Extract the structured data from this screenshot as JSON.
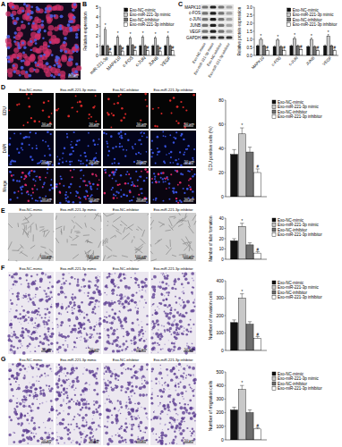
{
  "figure": {
    "panel_labels": [
      "A",
      "B",
      "C",
      "D",
      "E",
      "F",
      "G"
    ],
    "panel_a": {
      "scale_bar": "50 μm"
    },
    "blot": {
      "bands": [
        "MAPK10",
        "c-FOS",
        "c-JUN",
        "JUNB",
        "VEGF",
        "GAPDH"
      ],
      "lanes": [
        "Exo-NC-mimic",
        "Exo-miR-221-3p mimic",
        "Exo-NC-inhibitor",
        "Exo-miR-221-3p inhibitor"
      ]
    },
    "image_columns": [
      "Exo-NC-mimic",
      "Exo-miR-221-3p mimic",
      "Exo-NC-inhibitor",
      "Exo-miR-221-3p inhibitor"
    ],
    "image_rows": [
      {
        "row_labels": [
          "EDU",
          "DAPI",
          "Merge"
        ],
        "scale_bar": "50 μm"
      },
      {
        "scale_bar": "100 μm"
      },
      {
        "scale_bar": "50 μm"
      },
      {
        "scale_bar": "50 μm"
      }
    ]
  },
  "chart_data": [
    {
      "type": "bar",
      "y_label": "Relative expression",
      "categories": [
        "miR-221-3p",
        "MAPK10",
        "c-FOS",
        "c-JUN",
        "JUNB",
        "VEGF"
      ],
      "ylim": [
        0,
        5
      ],
      "yticks": [
        0,
        1,
        2,
        3,
        4,
        5
      ],
      "grid": false,
      "legend": "top-right",
      "series": [
        {
          "name": "Exo-NC-mimic",
          "color": "#111111",
          "values": [
            1.0,
            1.0,
            1.0,
            1.0,
            1.0,
            1.0
          ],
          "errors": [
            0.1,
            0.1,
            0.1,
            0.1,
            0.1,
            0.1
          ],
          "significance": [
            null,
            null,
            null,
            null,
            null,
            null
          ]
        },
        {
          "name": "Exo-miR-221-3p mimic",
          "color": "#c8c8c8",
          "values": [
            2.7,
            1.9,
            1.8,
            1.9,
            1.8,
            1.9
          ],
          "errors": [
            0.2,
            0.15,
            0.15,
            0.15,
            0.15,
            0.15
          ],
          "significance": [
            "*",
            "*",
            "*",
            "*",
            "*",
            "*"
          ]
        },
        {
          "name": "Exo-NC-inhibitor",
          "color": "#6e6e6e",
          "values": [
            1.0,
            1.0,
            1.05,
            1.0,
            1.0,
            1.0
          ],
          "errors": [
            0.1,
            0.1,
            0.1,
            0.1,
            0.1,
            0.1
          ],
          "significance": [
            null,
            null,
            null,
            null,
            null,
            null
          ]
        },
        {
          "name": "Exo-miR-221-3p inhibitor",
          "color": "#ffffff",
          "values": [
            0.35,
            0.45,
            0.5,
            0.5,
            0.45,
            0.5
          ],
          "errors": [
            0.05,
            0.05,
            0.05,
            0.05,
            0.05,
            0.05
          ],
          "significance": [
            "#",
            "#",
            "#",
            "#",
            "#",
            "#"
          ]
        }
      ]
    },
    {
      "type": "bar",
      "y_label": "Relative protein expression",
      "categories": [
        "MAPK10",
        "c-FOS",
        "c-JUN",
        "JUNB",
        "VEGF"
      ],
      "ylim": [
        0,
        3
      ],
      "yticks": [
        {
          "value": 0,
          "label": "0.0"
        },
        {
          "value": 0.5,
          "label": "0.5"
        },
        {
          "value": 1,
          "label": "1.0"
        },
        {
          "value": 1.5,
          "label": "1.5"
        },
        {
          "value": 2,
          "label": "2.0"
        },
        {
          "value": 2.5,
          "label": "2.5"
        },
        {
          "value": 3,
          "label": "3.0"
        }
      ],
      "grid": false,
      "legend": "top-right",
      "series": [
        {
          "name": "Exo-NC-mimic",
          "color": "#111111",
          "values": [
            0.6,
            0.55,
            0.6,
            0.55,
            0.6
          ],
          "errors": [
            0.05,
            0.05,
            0.05,
            0.05,
            0.05
          ],
          "significance": [
            null,
            null,
            null,
            null,
            null
          ]
        },
        {
          "name": "Exo-miR-221-3p mimic",
          "color": "#c8c8c8",
          "values": [
            1.0,
            0.95,
            1.05,
            1.0,
            1.2
          ],
          "errors": [
            0.08,
            0.08,
            0.08,
            0.08,
            0.1
          ],
          "significance": [
            "*",
            "*",
            "*",
            "*",
            "*"
          ]
        },
        {
          "name": "Exo-NC-inhibitor",
          "color": "#6e6e6e",
          "values": [
            0.6,
            0.55,
            0.6,
            0.55,
            0.6
          ],
          "errors": [
            0.05,
            0.05,
            0.05,
            0.05,
            0.05
          ],
          "significance": [
            null,
            null,
            null,
            null,
            null
          ]
        },
        {
          "name": "Exo-miR-221-3p inhibitor",
          "color": "#ffffff",
          "values": [
            0.3,
            0.3,
            0.35,
            0.3,
            0.3
          ],
          "errors": [
            0.04,
            0.04,
            0.04,
            0.04,
            0.04
          ],
          "significance": [
            "#",
            "#",
            "#",
            "#",
            "#"
          ]
        }
      ]
    },
    {
      "type": "bar",
      "y_label": "EDU positive cells (%)",
      "categories": [
        null
      ],
      "tick_labels": "y",
      "ylim": [
        0,
        80
      ],
      "yticks": [
        0,
        20,
        40,
        60,
        80
      ],
      "grid": false,
      "legend": "right",
      "series": [
        {
          "name": "Exo-NC-mimic",
          "color": "#111111",
          "values": [
            35
          ],
          "errors": [
            4
          ],
          "significance": [
            null
          ]
        },
        {
          "name": "Exo-miR-221-3p mimic",
          "color": "#c8c8c8",
          "values": [
            52
          ],
          "errors": [
            5
          ],
          "significance": [
            "*"
          ]
        },
        {
          "name": "Exo-NC-inhibitor",
          "color": "#6e6e6e",
          "values": [
            37
          ],
          "errors": [
            4
          ],
          "significance": [
            null
          ]
        },
        {
          "name": "Exo-miR-221-3p inhibitor",
          "color": "#ffffff",
          "values": [
            20
          ],
          "errors": [
            3
          ],
          "significance": [
            "#"
          ]
        }
      ]
    },
    {
      "type": "bar",
      "y_label": "Number of tube formation",
      "categories": [
        null
      ],
      "tick_labels": "y",
      "ylim": [
        0,
        40
      ],
      "yticks": [
        0,
        10,
        20,
        30,
        40
      ],
      "grid": false,
      "legend": "right",
      "series": [
        {
          "name": "Exo-NC-mimic",
          "color": "#111111",
          "values": [
            18
          ],
          "errors": [
            2
          ],
          "significance": [
            null
          ]
        },
        {
          "name": "Exo-miR-221-3p mimic",
          "color": "#c8c8c8",
          "values": [
            32
          ],
          "errors": [
            3
          ],
          "significance": [
            "*"
          ]
        },
        {
          "name": "Exo-NC-inhibitor",
          "color": "#6e6e6e",
          "values": [
            14
          ],
          "errors": [
            2
          ],
          "significance": [
            null
          ]
        },
        {
          "name": "Exo-miR-221-3p inhibitor",
          "color": "#ffffff",
          "values": [
            6
          ],
          "errors": [
            1.5
          ],
          "significance": [
            "#"
          ]
        }
      ]
    },
    {
      "type": "bar",
      "y_label": "Number of invasion cells",
      "categories": [
        null
      ],
      "tick_labels": "y",
      "ylim": [
        0,
        400
      ],
      "yticks": [
        0,
        100,
        200,
        300,
        400
      ],
      "grid": false,
      "legend": "right",
      "series": [
        {
          "name": "Exo-NC-mimic",
          "color": "#111111",
          "values": [
            160
          ],
          "errors": [
            15
          ],
          "significance": [
            null
          ]
        },
        {
          "name": "Exo-miR-221-3p mimic",
          "color": "#c8c8c8",
          "values": [
            300
          ],
          "errors": [
            25
          ],
          "significance": [
            "*"
          ]
        },
        {
          "name": "Exo-NC-inhibitor",
          "color": "#6e6e6e",
          "values": [
            150
          ],
          "errors": [
            15
          ],
          "significance": [
            null
          ]
        },
        {
          "name": "Exo-miR-221-3p inhibitor",
          "color": "#ffffff",
          "values": [
            70
          ],
          "errors": [
            10
          ],
          "significance": [
            "#"
          ]
        }
      ]
    },
    {
      "type": "bar",
      "y_label": "Number of migration cells",
      "categories": [
        null
      ],
      "tick_labels": "y",
      "ylim": [
        0,
        500
      ],
      "yticks": [
        0,
        100,
        200,
        300,
        400,
        500
      ],
      "grid": false,
      "legend": "right",
      "series": [
        {
          "name": "Exo-NC-mimic",
          "color": "#111111",
          "values": [
            220
          ],
          "errors": [
            20
          ],
          "significance": [
            null
          ]
        },
        {
          "name": "Exo-miR-221-3p mimic",
          "color": "#c8c8c8",
          "values": [
            370
          ],
          "errors": [
            30
          ],
          "significance": [
            "*"
          ]
        },
        {
          "name": "Exo-NC-inhibitor",
          "color": "#6e6e6e",
          "values": [
            200
          ],
          "errors": [
            20
          ],
          "significance": [
            null
          ]
        },
        {
          "name": "Exo-miR-221-3p inhibitor",
          "color": "#ffffff",
          "values": [
            80
          ],
          "errors": [
            10
          ],
          "significance": [
            "#"
          ]
        }
      ]
    }
  ]
}
